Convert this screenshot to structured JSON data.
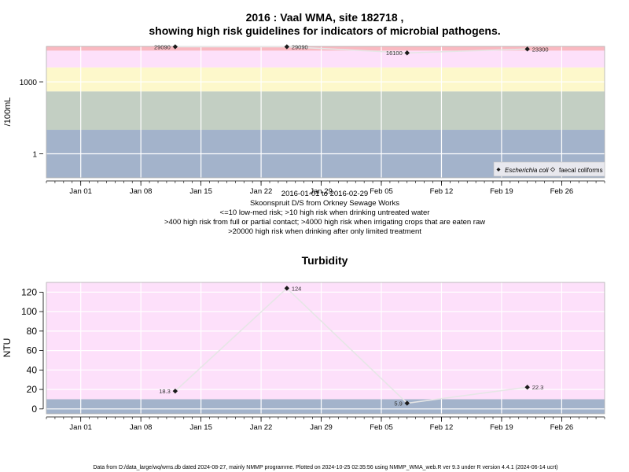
{
  "colors": {
    "background": "#ffffff",
    "band_red": "#f9b9c1",
    "band_pink": "#fde0fa",
    "band_yellow": "#fdf8cb",
    "band_grey": "#c3cfc3",
    "band_blue": "#a3b3cb",
    "grid": "#ffffff",
    "line": "#e6e6e6",
    "point": "#1a1a1a",
    "label": "#000000"
  },
  "footer": "Data from D:/data_large/wq/wms.db dated 2024-08-27, mainly NMMP programme. Plotted on 2024-10-25 02:35:56 using NMMP_WMA_web.R ver 9.3 under R version 4.4.1 (2024-06-14 ucrt)",
  "chart_data": [
    {
      "type": "scatter",
      "title": "2016 : Vaal WMA, site 182718 ,",
      "subtitle": "showing high risk guidelines for indicators of microbial pathogens.",
      "ylabel": "/100mL",
      "y_scale": "log",
      "yticks": [
        1,
        1000
      ],
      "ylim": [
        0.1,
        30000
      ],
      "xlim": [
        "2015-12-28",
        "2016-03-02"
      ],
      "xticks": [
        "Jan 01",
        "Jan 08",
        "Jan 15",
        "Jan 22",
        "Jan 29",
        "Feb 05",
        "Feb 12",
        "Feb 19",
        "Feb 26"
      ],
      "xtick_dates": [
        "2016-01-01",
        "2016-01-08",
        "2016-01-15",
        "2016-01-22",
        "2016-01-29",
        "2016-02-05",
        "2016-02-12",
        "2016-02-19",
        "2016-02-26"
      ],
      "grid": true,
      "legend_position": "bottom-right",
      "bands": [
        {
          "from": 0.1,
          "to": 10,
          "color": "#a3b3cb"
        },
        {
          "from": 10,
          "to": 400,
          "color": "#c3cfc3"
        },
        {
          "from": 400,
          "to": 4000,
          "color": "#fdf8cb"
        },
        {
          "from": 4000,
          "to": 20000,
          "color": "#fde0fa"
        },
        {
          "from": 20000,
          "to": 30000,
          "color": "#f9b9c1"
        }
      ],
      "series": [
        {
          "name": "Escherichia coli",
          "marker": "diamond-filled",
          "points": [
            {
              "x": "2016-01-12",
              "y": 29090,
              "label": "29090"
            },
            {
              "x": "2016-01-25",
              "y": 29090,
              "label": "29090"
            },
            {
              "x": "2016-02-08",
              "y": 16100,
              "label": "16100"
            },
            {
              "x": "2016-02-22",
              "y": 23300,
              "label": "23300"
            }
          ]
        },
        {
          "name": "faecal coliforms",
          "marker": "diamond-open",
          "points": []
        }
      ],
      "notes": [
        "2016-01-01 to 2016-02-29",
        "Skoonspruit D/S from Orkney Sewage Works",
        "<=10 low-med risk; >10 high risk when drinking untreated water",
        ">400 high risk from full or partial contact; >4000 high risk when irrigating crops that are eaten raw",
        ">20000 high risk when drinking after only limited treatment"
      ]
    },
    {
      "type": "line",
      "title": "Turbidity",
      "ylabel": "NTU",
      "ylim": [
        -5,
        130
      ],
      "yticks": [
        0,
        20,
        40,
        60,
        80,
        100,
        120
      ],
      "xlim": [
        "2015-12-28",
        "2016-03-02"
      ],
      "xticks": [
        "Jan 01",
        "Jan 08",
        "Jan 15",
        "Jan 22",
        "Jan 29",
        "Feb 05",
        "Feb 12",
        "Feb 19",
        "Feb 26"
      ],
      "xtick_dates": [
        "2016-01-01",
        "2016-01-08",
        "2016-01-15",
        "2016-01-22",
        "2016-01-29",
        "2016-02-05",
        "2016-02-12",
        "2016-02-19",
        "2016-02-26"
      ],
      "grid": true,
      "bands": [
        {
          "from": -5,
          "to": 10,
          "color": "#a3b3cb"
        },
        {
          "from": 10,
          "to": 130,
          "color": "#fde0fa"
        }
      ],
      "series": [
        {
          "marker": "diamond-filled",
          "points": [
            {
              "x": "2016-01-12",
              "y": 18.3,
              "label": "18.3"
            },
            {
              "x": "2016-01-25",
              "y": 124,
              "label": "124"
            },
            {
              "x": "2016-02-08",
              "y": 5.9,
              "label": "5.9"
            },
            {
              "x": "2016-02-22",
              "y": 22.3,
              "label": "22.3"
            }
          ]
        }
      ]
    }
  ]
}
